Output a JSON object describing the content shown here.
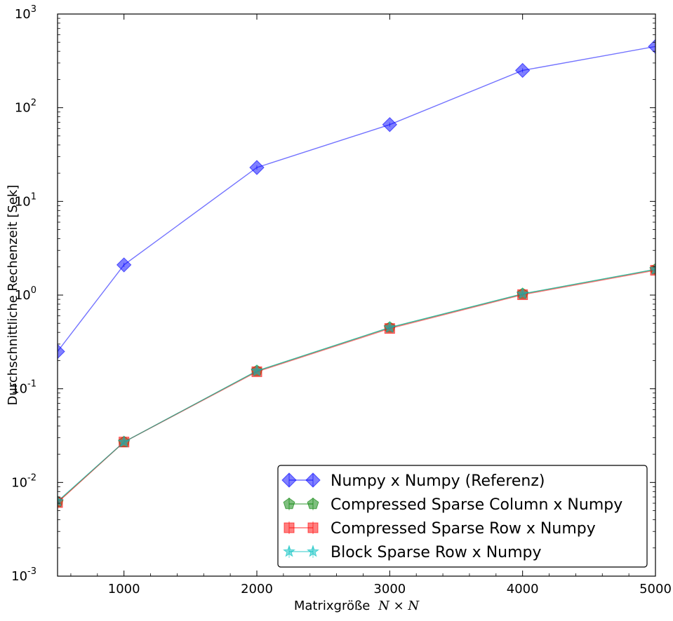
{
  "chart_data": {
    "type": "line",
    "xlabel": "Matrixgröße",
    "xlabel_math": "N × N",
    "ylabel": "Durchschnittliche Rechenzeit [Sek]",
    "xlim": [
      500,
      5000
    ],
    "ylim": [
      0.001,
      1000
    ],
    "yscale": "log",
    "grid": false,
    "legend_position": "lower-right",
    "x_ticks": [
      1000,
      2000,
      3000,
      4000,
      5000
    ],
    "y_ticks": [
      {
        "value": 0.001,
        "base": "10",
        "exp": "-3"
      },
      {
        "value": 0.01,
        "base": "10",
        "exp": "-2"
      },
      {
        "value": 0.1,
        "base": "10",
        "exp": "-1"
      },
      {
        "value": 1,
        "base": "10",
        "exp": "0"
      },
      {
        "value": 10,
        "base": "10",
        "exp": "1"
      },
      {
        "value": 100,
        "base": "10",
        "exp": "2"
      },
      {
        "value": 1000,
        "base": "10",
        "exp": "3"
      }
    ],
    "x": [
      500,
      1000,
      2000,
      3000,
      4000,
      5000
    ],
    "series": [
      {
        "name": "Numpy x Numpy (Referenz)",
        "marker": "diamond",
        "color": "#0000ff",
        "values": [
          0.25,
          2.1,
          23,
          66,
          250,
          450
        ]
      },
      {
        "name": "Compressed Sparse Column x Numpy",
        "marker": "pentagon",
        "color": "#008000",
        "values": [
          0.0062,
          0.027,
          0.155,
          0.45,
          1.03,
          1.88
        ]
      },
      {
        "name": "Compressed Sparse Row x Numpy",
        "marker": "square",
        "color": "#ff0000",
        "values": [
          0.0061,
          0.027,
          0.152,
          0.44,
          1.01,
          1.84
        ]
      },
      {
        "name": "Block Sparse Row x Numpy",
        "marker": "star",
        "color": "#00bfbf",
        "values": [
          0.0063,
          0.027,
          0.155,
          0.45,
          1.03,
          1.88
        ]
      }
    ]
  }
}
